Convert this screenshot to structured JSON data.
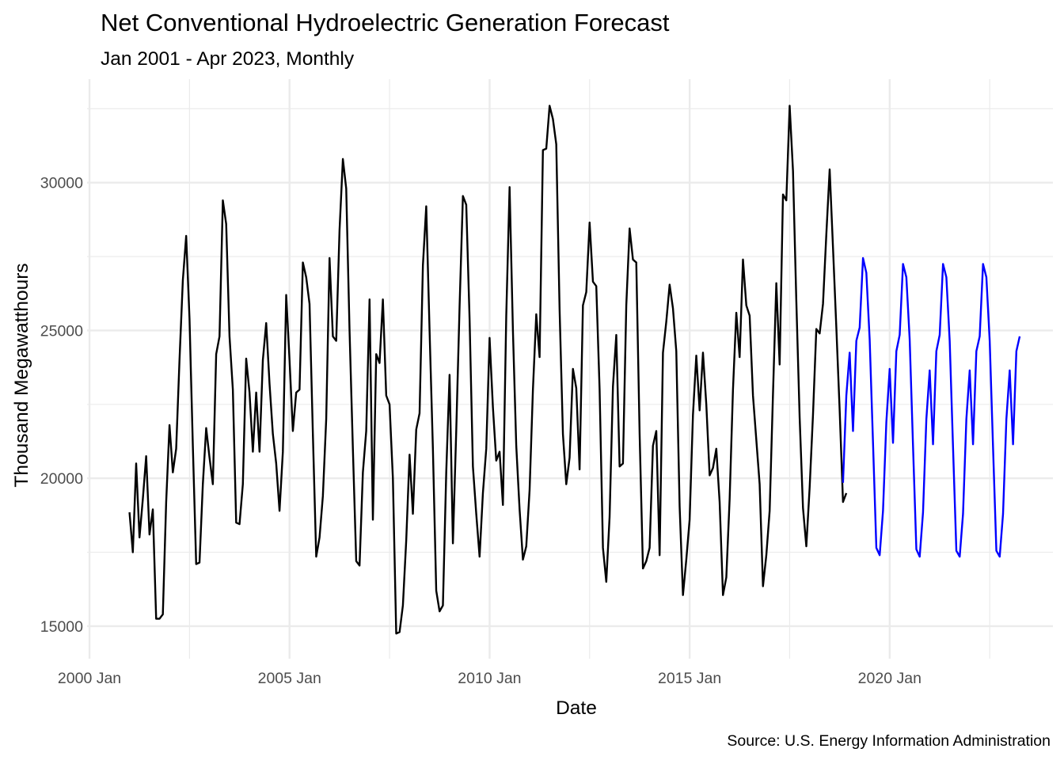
{
  "chart_data": {
    "type": "line",
    "title": "Net Conventional Hydroelectric Generation Forecast",
    "subtitle": "Jan 2001 - Apr 2023, Monthly",
    "xlabel": "Date",
    "ylabel": "Thousand Megawatthours",
    "caption": "Source: U.S. Energy Information Administration",
    "xlim": [
      1999.94,
      2024.08
    ],
    "ylim": [
      13900,
      33500
    ],
    "x_ticks": [
      {
        "value": 2000.0,
        "label": "2000 Jan"
      },
      {
        "value": 2005.0,
        "label": "2005 Jan"
      },
      {
        "value": 2010.0,
        "label": "2010 Jan"
      },
      {
        "value": 2015.0,
        "label": "2015 Jan"
      },
      {
        "value": 2020.0,
        "label": "2020 Jan"
      }
    ],
    "x_minor_ticks": [
      2002.5,
      2007.5,
      2012.5,
      2017.5,
      2022.5
    ],
    "y_ticks": [
      15000,
      20000,
      25000,
      30000
    ],
    "y_minor_ticks": [
      17500,
      22500,
      27500,
      32500
    ],
    "grid": true,
    "legend": "none",
    "colors": {
      "observed": "#000000",
      "forecast": "#0000ff",
      "grid": "#ebebeb"
    },
    "series": [
      {
        "start": "2001-01",
        "values": [
          18850,
          17500,
          20500,
          18000,
          19300,
          20750,
          18100,
          18950,
          15250,
          15250,
          15400,
          19200,
          21800,
          20200,
          21000,
          24000,
          26700,
          28200,
          25400,
          21100,
          17100,
          17150,
          19800,
          21700,
          20700,
          19800,
          24200,
          24800,
          29400,
          28600,
          24800,
          23000,
          18500,
          18450,
          19800,
          24050,
          22900,
          20900,
          22900,
          20900,
          24000,
          25250,
          23200,
          21500,
          20500,
          18900,
          20900,
          26200,
          24000,
          21600,
          22900,
          23000,
          27300,
          26800,
          25900,
          21500,
          17350,
          18000,
          19400,
          22000,
          27450,
          24800,
          24650,
          28400,
          30800,
          29800,
          25000,
          21000,
          17200,
          17050,
          20200,
          21600,
          26050,
          18600,
          24200,
          23900,
          26050,
          22800,
          22500,
          20000,
          14750,
          14800,
          15700,
          17900,
          20800,
          18800,
          21650,
          22200,
          27200,
          29200,
          25000,
          21000,
          16200,
          15500,
          15700,
          20200,
          23500,
          17800,
          21600,
          25800,
          29550,
          29250,
          25400,
          20400,
          18800,
          17350,
          19500,
          21000,
          24750,
          22400,
          20600,
          20900,
          19100,
          25500,
          29850,
          25000,
          21100,
          18950,
          17250,
          17700,
          19600,
          23000,
          25550,
          24100,
          31100,
          31150,
          32600,
          32150,
          31300,
          25700,
          21500,
          19800,
          20700,
          23700,
          23050,
          20300,
          25850,
          26300,
          28650,
          26650,
          26500,
          23000,
          17650,
          16500,
          18700,
          23100,
          24850,
          20400,
          20500,
          25850,
          28450,
          27400,
          27300,
          21500,
          16950,
          17200,
          17650,
          21100,
          21600,
          17400,
          24250,
          25300,
          26550,
          25750,
          24300,
          19050,
          16050,
          17250,
          18600,
          22150,
          24150,
          22300,
          24250,
          22500,
          20100,
          20350,
          21000,
          19200,
          16050,
          16650,
          19300,
          23000,
          25600,
          24100,
          27400,
          25850,
          25500,
          22800,
          21300,
          19800,
          16350,
          17400,
          18900,
          22850,
          26600,
          23850,
          29600,
          29400,
          32600,
          30400,
          26000,
          22050,
          19000,
          17700,
          19700,
          22150,
          25050,
          24900,
          25900,
          28250,
          30450,
          27800,
          25100,
          22300,
          19200,
          19500
        ]
      },
      {
        "start": "2018-11",
        "values": [
          19850,
          22800,
          24250,
          21600,
          24650,
          25100,
          27450,
          26950,
          24700,
          21200,
          17650,
          17400,
          18900,
          21900,
          23700,
          21200,
          24300,
          24850,
          27250,
          26800,
          24700,
          21100,
          17600,
          17350,
          18850,
          22000,
          23650,
          21150,
          24300,
          24850,
          27250,
          26800,
          24650,
          21050,
          17550,
          17350,
          18800,
          22000,
          23650,
          21150,
          24300,
          24800,
          27250,
          26800,
          24650,
          21050,
          17550,
          17350,
          18800,
          22000,
          23650,
          21150,
          24300,
          24800
        ]
      }
    ]
  }
}
